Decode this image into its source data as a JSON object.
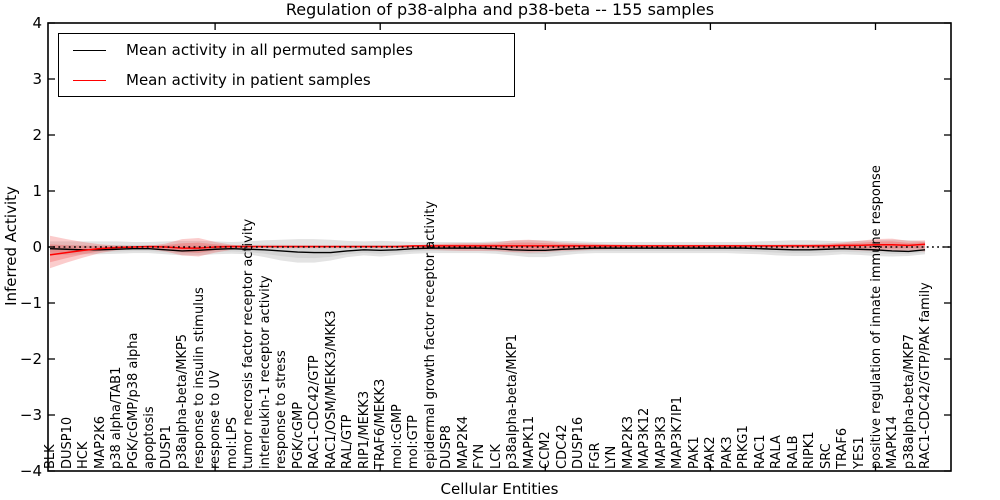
{
  "title": "Regulation of p38-alpha and p38-beta -- 155 samples",
  "axes": {
    "x_label": "Cellular Entities",
    "y_label": "Inferred Activity"
  },
  "legend": {
    "items": [
      {
        "label": "Mean activity in all permuted samples",
        "color": "#000000"
      },
      {
        "label": "Mean activity in patient samples",
        "color": "#ff0000"
      }
    ]
  },
  "chart_data": {
    "type": "line",
    "title": "Regulation of p38-alpha and p38-beta -- 155 samples",
    "xlabel": "Cellular Entities",
    "ylabel": "Inferred Activity",
    "ylim": [
      -4,
      4
    ],
    "grid": false,
    "legend_position": "upper left",
    "y_tick_values": [
      4,
      3,
      2,
      1,
      0,
      -1,
      -2,
      -3,
      -4
    ],
    "y_tick_labels": [
      "4",
      "3",
      "2",
      "1",
      "0",
      "−1",
      "−2",
      "−3",
      "−4"
    ],
    "x_tick_values": [
      10,
      20,
      30,
      40,
      50
    ],
    "zero_line": 0,
    "categories": [
      "BLK",
      "DUSP10",
      "HCK",
      "MAP2K6",
      "p38 alpha/TAB1",
      "PGK/cGMP/p38 alpha",
      "apoptosis",
      "DUSP1",
      "p38alpha-beta/MKP5",
      "response to insulin stimulus",
      "response to UV",
      "mol:LPS",
      "tumor necrosis factor receptor activity",
      "interleukin-1 receptor activity",
      "response to stress",
      "PGK/cGMP",
      "RAC1-CDC42/GTP",
      "RAC1/OSM/MEKK3/MKK3",
      "RAL/GTP",
      "RIP1/MEKK3",
      "TRAF6/MEKK3",
      "mol:cGMP",
      "mol:GTP",
      "epidermal growth factor receptor activity",
      "DUSP8",
      "MAP2K4",
      "FYN",
      "LCK",
      "p38alpha-beta/MKP1",
      "MAPK11",
      "CCM2",
      "CDC42",
      "DUSP16",
      "FGR",
      "LYN",
      "MAP2K3",
      "MAP3K12",
      "MAP3K3",
      "MAP3K7IP1",
      "PAK1",
      "PAK2",
      "PAK3",
      "PRKG1",
      "RAC1",
      "RALA",
      "RALB",
      "RIPK1",
      "SRC",
      "TRAF6",
      "YES1",
      "positive regulation of innate immune response",
      "MAPK14",
      "p38alpha-beta/MKP7",
      "RAC1-CDC42/GTP/PAK family"
    ],
    "series": [
      {
        "name": "Mean activity in all permuted samples",
        "color": "#000000",
        "values": [
          -0.03,
          -0.04,
          -0.05,
          -0.05,
          -0.04,
          -0.03,
          -0.03,
          -0.05,
          -0.07,
          -0.06,
          -0.04,
          -0.03,
          -0.04,
          -0.05,
          -0.07,
          -0.09,
          -0.1,
          -0.1,
          -0.07,
          -0.05,
          -0.06,
          -0.05,
          -0.03,
          -0.02,
          -0.02,
          -0.02,
          -0.02,
          -0.03,
          -0.05,
          -0.06,
          -0.06,
          -0.04,
          -0.03,
          -0.02,
          -0.02,
          -0.02,
          -0.02,
          -0.02,
          -0.02,
          -0.02,
          -0.02,
          -0.02,
          -0.02,
          -0.03,
          -0.04,
          -0.05,
          -0.05,
          -0.04,
          -0.03,
          -0.04,
          -0.05,
          -0.07,
          -0.08,
          -0.05
        ]
      },
      {
        "name": "Mean activity in patient samples",
        "color": "#ff0000",
        "values": [
          -0.14,
          -0.1,
          -0.06,
          -0.03,
          -0.01,
          0.0,
          0.01,
          0.0,
          -0.02,
          -0.02,
          0.0,
          0.01,
          0.01,
          0.01,
          0.01,
          0.01,
          0.01,
          0.01,
          0.01,
          0.01,
          0.01,
          0.01,
          0.02,
          0.02,
          0.02,
          0.02,
          0.02,
          0.02,
          0.02,
          0.02,
          0.02,
          0.02,
          0.02,
          0.02,
          0.02,
          0.02,
          0.02,
          0.02,
          0.02,
          0.02,
          0.02,
          0.02,
          0.02,
          0.02,
          0.02,
          0.02,
          0.02,
          0.02,
          0.03,
          0.03,
          0.04,
          0.04,
          0.03,
          0.05
        ]
      }
    ],
    "bands": [
      {
        "name": "permuted-samples-range",
        "color": "#bdbdbd",
        "upper": [
          0.1,
          0.1,
          0.1,
          0.1,
          0.1,
          0.09,
          0.09,
          0.1,
          0.11,
          0.11,
          0.1,
          0.09,
          0.1,
          0.12,
          0.13,
          0.14,
          0.14,
          0.13,
          0.11,
          0.1,
          0.11,
          0.1,
          0.09,
          0.09,
          0.09,
          0.09,
          0.09,
          0.1,
          0.11,
          0.12,
          0.12,
          0.11,
          0.1,
          0.09,
          0.09,
          0.09,
          0.09,
          0.09,
          0.09,
          0.09,
          0.09,
          0.09,
          0.09,
          0.1,
          0.11,
          0.12,
          0.12,
          0.11,
          0.1,
          0.11,
          0.12,
          0.13,
          0.12,
          0.1
        ],
        "lower": [
          -0.14,
          -0.14,
          -0.13,
          -0.13,
          -0.12,
          -0.11,
          -0.11,
          -0.13,
          -0.15,
          -0.15,
          -0.13,
          -0.12,
          -0.13,
          -0.18,
          -0.24,
          -0.28,
          -0.28,
          -0.24,
          -0.18,
          -0.15,
          -0.17,
          -0.14,
          -0.12,
          -0.11,
          -0.11,
          -0.11,
          -0.11,
          -0.12,
          -0.15,
          -0.18,
          -0.18,
          -0.15,
          -0.12,
          -0.11,
          -0.11,
          -0.11,
          -0.11,
          -0.11,
          -0.11,
          -0.11,
          -0.11,
          -0.11,
          -0.12,
          -0.13,
          -0.15,
          -0.16,
          -0.16,
          -0.15,
          -0.13,
          -0.14,
          -0.16,
          -0.17,
          -0.16,
          -0.13
        ]
      },
      {
        "name": "patient-samples-range",
        "color": "#f25555",
        "upper": [
          0.2,
          0.14,
          0.09,
          0.05,
          0.03,
          0.02,
          0.02,
          0.06,
          0.14,
          0.16,
          0.09,
          0.04,
          0.02,
          0.02,
          0.02,
          0.02,
          0.02,
          0.02,
          0.02,
          0.02,
          0.02,
          0.02,
          0.03,
          0.05,
          0.06,
          0.07,
          0.07,
          0.08,
          0.12,
          0.13,
          0.11,
          0.08,
          0.07,
          0.06,
          0.05,
          0.04,
          0.04,
          0.04,
          0.04,
          0.04,
          0.04,
          0.04,
          0.04,
          0.04,
          0.04,
          0.05,
          0.05,
          0.06,
          0.08,
          0.11,
          0.14,
          0.15,
          0.11,
          0.12
        ],
        "lower": [
          -0.38,
          -0.28,
          -0.19,
          -0.11,
          -0.06,
          -0.04,
          -0.04,
          -0.08,
          -0.15,
          -0.17,
          -0.1,
          -0.05,
          -0.03,
          -0.02,
          -0.02,
          -0.02,
          -0.02,
          -0.02,
          -0.02,
          -0.02,
          -0.02,
          -0.02,
          -0.03,
          -0.05,
          -0.06,
          -0.07,
          -0.07,
          -0.07,
          -0.09,
          -0.1,
          -0.09,
          -0.07,
          -0.06,
          -0.05,
          -0.04,
          -0.03,
          -0.03,
          -0.03,
          -0.03,
          -0.03,
          -0.03,
          -0.03,
          -0.03,
          -0.03,
          -0.03,
          -0.03,
          -0.03,
          -0.04,
          -0.05,
          -0.06,
          -0.07,
          -0.08,
          -0.06,
          -0.08
        ]
      }
    ]
  }
}
